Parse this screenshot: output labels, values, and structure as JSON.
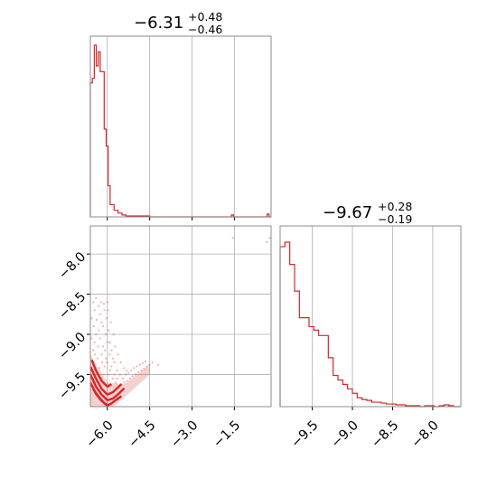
{
  "colors": {
    "series": "#d62728",
    "grid": "#b0b0b0",
    "frame": "#8c8c8c"
  },
  "titles": [
    {
      "main": "−6.31",
      "sup": "+0.48",
      "sub": "−0.46"
    },
    {
      "main": "−9.67",
      "sup": "+0.28",
      "sub": "−0.19"
    }
  ],
  "chart_data": [
    {
      "type": "histogram",
      "panel": "marginal-x",
      "xlim": [
        -6.6,
        -0.2
      ],
      "xticks": [
        -6.0,
        -4.5,
        -3.0,
        -1.5
      ],
      "grid": true,
      "bin_edges": [
        -6.6,
        -6.53,
        -6.46,
        -6.39,
        -6.32,
        -6.25,
        -6.18,
        -6.11,
        -6.04,
        -5.97,
        -5.9,
        -5.83,
        -5.76,
        -5.69,
        -5.62,
        -5.55,
        -5.48,
        -5.41,
        -5.34,
        -5.27,
        -5.2,
        -5.13,
        -5.06,
        -4.99,
        -4.92,
        -4.85,
        -4.78,
        -4.71,
        -4.64,
        -4.57,
        -4.5,
        -1.6,
        -1.53,
        -0.34,
        -0.27,
        -0.2
      ],
      "counts": [
        142,
        147,
        182,
        160,
        175,
        154,
        154,
        93,
        75,
        33,
        13,
        13,
        7,
        7,
        4,
        4,
        2,
        2,
        1,
        1,
        1,
        1,
        1,
        1,
        1,
        1,
        1,
        1,
        1,
        1,
        0,
        2,
        0,
        3,
        0
      ]
    },
    {
      "type": "scatter+contour",
      "panel": "joint",
      "xlim": [
        -6.6,
        -0.2
      ],
      "ylim": [
        -9.9,
        -7.65
      ],
      "xticks": [
        -6.0,
        -4.5,
        -3.0,
        -1.5
      ],
      "yticks": [
        -8.0,
        -8.5,
        -9.0,
        -9.5
      ],
      "grid": true,
      "contours": [
        [
          [
            -6.6,
            -9.4
          ],
          [
            -6.4,
            -9.55
          ],
          [
            -6.2,
            -9.68
          ],
          [
            -6.0,
            -9.75
          ],
          [
            -5.8,
            -9.72
          ],
          [
            -5.65,
            -9.67
          ],
          [
            -5.5,
            -9.62
          ]
        ],
        [
          [
            -6.6,
            -9.5
          ],
          [
            -6.4,
            -9.65
          ],
          [
            -6.2,
            -9.75
          ],
          [
            -6.0,
            -9.82
          ],
          [
            -5.8,
            -9.8
          ],
          [
            -5.6,
            -9.74
          ],
          [
            -5.4,
            -9.67
          ]
        ],
        [
          [
            -6.6,
            -9.6
          ],
          [
            -6.4,
            -9.74
          ],
          [
            -6.2,
            -9.83
          ],
          [
            -6.0,
            -9.88
          ],
          [
            -5.9,
            -9.87
          ],
          [
            -5.7,
            -9.82
          ],
          [
            -5.5,
            -9.77
          ]
        ],
        [
          [
            -6.55,
            -9.32
          ],
          [
            -6.4,
            -9.45
          ],
          [
            -6.2,
            -9.58
          ],
          [
            -6.0,
            -9.65
          ],
          [
            -5.85,
            -9.62
          ]
        ],
        [
          [
            -6.5,
            -9.68
          ],
          [
            -6.3,
            -9.78
          ],
          [
            -6.1,
            -9.86
          ],
          [
            -5.95,
            -9.9
          ]
        ]
      ],
      "points": [
        [
          -6.5,
          -9.2
        ],
        [
          -6.4,
          -9.0
        ],
        [
          -6.3,
          -8.95
        ],
        [
          -6.45,
          -9.1
        ],
        [
          -6.35,
          -9.3
        ],
        [
          -6.2,
          -9.25
        ],
        [
          -6.1,
          -9.4
        ],
        [
          -6.25,
          -9.05
        ],
        [
          -6.15,
          -9.15
        ],
        [
          -6.05,
          -9.3
        ],
        [
          -5.95,
          -9.5
        ],
        [
          -5.9,
          -9.45
        ],
        [
          -5.8,
          -9.55
        ],
        [
          -5.7,
          -9.6
        ],
        [
          -5.6,
          -9.65
        ],
        [
          -5.5,
          -9.62
        ],
        [
          -5.4,
          -9.6
        ],
        [
          -5.3,
          -9.58
        ],
        [
          -5.2,
          -9.55
        ],
        [
          -5.1,
          -9.52
        ],
        [
          -5.0,
          -9.5
        ],
        [
          -4.9,
          -9.47
        ],
        [
          -4.8,
          -9.45
        ],
        [
          -4.7,
          -9.43
        ],
        [
          -4.6,
          -9.4
        ],
        [
          -4.5,
          -9.38
        ],
        [
          -4.4,
          -9.35
        ],
        [
          -6.55,
          -8.8
        ],
        [
          -6.5,
          -8.6
        ],
        [
          -6.45,
          -8.7
        ],
        [
          -6.4,
          -8.55
        ],
        [
          -6.3,
          -8.65
        ],
        [
          -6.25,
          -8.75
        ],
        [
          -6.2,
          -8.85
        ],
        [
          -6.15,
          -8.9
        ],
        [
          -6.1,
          -8.7
        ],
        [
          -6.05,
          -9.0
        ],
        [
          -6.0,
          -8.6
        ],
        [
          -5.95,
          -8.95
        ],
        [
          -5.9,
          -9.1
        ],
        [
          -5.85,
          -9.2
        ],
        [
          -5.8,
          -9.3
        ],
        [
          -5.75,
          -9.35
        ],
        [
          -5.65,
          -9.45
        ],
        [
          -5.55,
          -9.5
        ],
        [
          -6.58,
          -9.45
        ],
        [
          -6.5,
          -9.55
        ],
        [
          -6.42,
          -9.6
        ],
        [
          -6.35,
          -9.5
        ],
        [
          -6.28,
          -9.42
        ],
        [
          -6.2,
          -9.55
        ],
        [
          -6.12,
          -9.5
        ],
        [
          -6.0,
          -9.35
        ],
        [
          -5.92,
          -9.25
        ],
        [
          -5.85,
          -9.4
        ],
        [
          -5.75,
          -9.5
        ],
        [
          -5.65,
          -9.55
        ],
        [
          -5.45,
          -9.55
        ],
        [
          -5.35,
          -9.5
        ],
        [
          -5.25,
          -9.48
        ],
        [
          -5.15,
          -9.45
        ],
        [
          -5.05,
          -9.42
        ],
        [
          -4.95,
          -9.4
        ],
        [
          -4.85,
          -9.38
        ],
        [
          -4.75,
          -9.36
        ],
        [
          -4.65,
          -9.34
        ],
        [
          -4.2,
          -9.38
        ],
        [
          -6.48,
          -8.9
        ],
        [
          -6.38,
          -8.82
        ],
        [
          -6.22,
          -8.6
        ],
        [
          -6.12,
          -8.62
        ],
        [
          -6.02,
          -8.8
        ],
        [
          -5.98,
          -8.7
        ],
        [
          -5.88,
          -8.85
        ],
        [
          -5.78,
          -9.0
        ],
        [
          -5.72,
          -9.15
        ],
        [
          -5.62,
          -9.25
        ],
        [
          -5.52,
          -9.35
        ],
        [
          -5.42,
          -9.42
        ],
        [
          -5.32,
          -9.45
        ],
        [
          -0.35,
          -7.85
        ],
        [
          -0.25,
          -7.8
        ],
        [
          -1.55,
          -7.8
        ],
        [
          -6.56,
          -9.05
        ],
        [
          -6.52,
          -9.35
        ],
        [
          -6.44,
          -9.25
        ],
        [
          -6.33,
          -9.15
        ],
        [
          -6.18,
          -9.35
        ],
        [
          -6.08,
          -9.2
        ],
        [
          -5.98,
          -9.1
        ]
      ]
    },
    {
      "type": "histogram",
      "panel": "marginal-y",
      "xlim": [
        -9.9,
        -7.65
      ],
      "xticks": [
        -9.5,
        -9.0,
        -8.5,
        -8.0
      ],
      "grid": true,
      "bin_edges": [
        -9.9,
        -9.84,
        -9.78,
        -9.72,
        -9.66,
        -9.6,
        -9.54,
        -9.48,
        -9.42,
        -9.36,
        -9.3,
        -9.24,
        -9.18,
        -9.12,
        -9.06,
        -9.0,
        -8.94,
        -8.88,
        -8.82,
        -8.76,
        -8.7,
        -8.64,
        -8.58,
        -8.52,
        -8.46,
        -8.4,
        -8.34,
        -8.28,
        -8.22,
        -8.16,
        -8.1,
        -8.04,
        -7.98,
        -7.92,
        -7.86,
        -7.8,
        -7.74,
        -7.65
      ],
      "counts": [
        180,
        185,
        160,
        130,
        100,
        100,
        90,
        86,
        80,
        80,
        55,
        35,
        30,
        25,
        20,
        15,
        10,
        8,
        7,
        5,
        5,
        4,
        3,
        3,
        2,
        2,
        1,
        1,
        1,
        0,
        1,
        1,
        0,
        1,
        2,
        1,
        0
      ]
    }
  ]
}
